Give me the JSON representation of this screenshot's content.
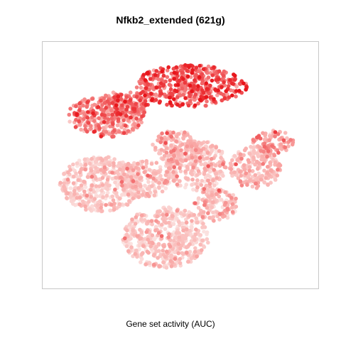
{
  "chart_data": {
    "type": "scatter",
    "title": "Nfkb2_extended (621g)",
    "xlabel": "Gene set activity (AUC)",
    "ylabel": "",
    "grid": false,
    "legend": "none",
    "colors": {
      "low": "#fbe3e1",
      "mid": "#f9a6a4",
      "high": "#e8151b",
      "frame": "#c8c8c8"
    },
    "point_count_approx": 3000,
    "clusters": [
      {
        "cx": 0.54,
        "cy": 0.84,
        "rx": 0.22,
        "ry": 0.09,
        "level": 0.72
      },
      {
        "cx": 0.21,
        "cy": 0.71,
        "rx": 0.15,
        "ry": 0.09,
        "level": 0.55
      },
      {
        "cx": 0.28,
        "cy": 0.76,
        "rx": 0.1,
        "ry": 0.06,
        "level": 0.65
      },
      {
        "cx": 0.19,
        "cy": 0.42,
        "rx": 0.16,
        "ry": 0.12,
        "level": 0.18
      },
      {
        "cx": 0.48,
        "cy": 0.58,
        "rx": 0.09,
        "ry": 0.07,
        "level": 0.35
      },
      {
        "cx": 0.56,
        "cy": 0.5,
        "rx": 0.12,
        "ry": 0.11,
        "level": 0.25
      },
      {
        "cx": 0.79,
        "cy": 0.49,
        "rx": 0.1,
        "ry": 0.09,
        "level": 0.3
      },
      {
        "cx": 0.86,
        "cy": 0.6,
        "rx": 0.08,
        "ry": 0.05,
        "level": 0.45
      },
      {
        "cx": 0.44,
        "cy": 0.19,
        "rx": 0.17,
        "ry": 0.13,
        "level": 0.18
      },
      {
        "cx": 0.36,
        "cy": 0.44,
        "rx": 0.1,
        "ry": 0.08,
        "level": 0.22
      },
      {
        "cx": 0.64,
        "cy": 0.33,
        "rx": 0.09,
        "ry": 0.07,
        "level": 0.25
      }
    ]
  }
}
